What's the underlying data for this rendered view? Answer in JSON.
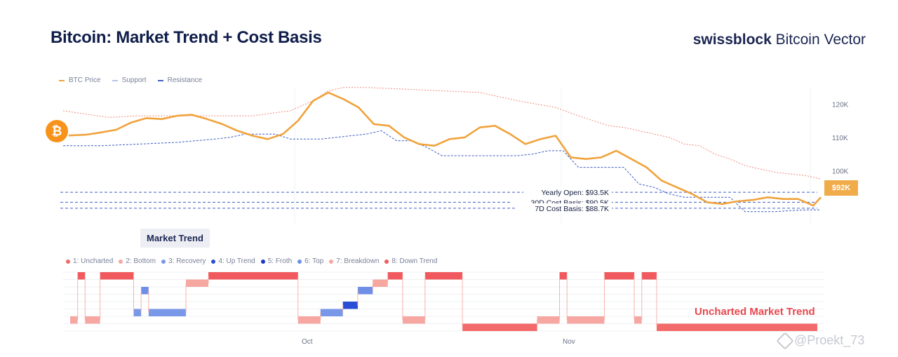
{
  "header": {
    "title": "Bitcoin: Market Trend + Cost Basis",
    "brand_bold": "swissblock",
    "brand_rest": " Bitcoin Vector"
  },
  "legend": {
    "btc_price": "BTC Price",
    "support": "Support",
    "resistance": "Resistance"
  },
  "colors": {
    "price": "#f0a33c",
    "support": "#3f5dc2",
    "resistance": "#f08a7c",
    "uncharted": "#f46a6a",
    "bottom": "#f7a7a2",
    "recovery": "#7a98e8",
    "up_trend": "#2a4fd6",
    "froth": "#1838c8",
    "top": "#6f8fe6",
    "breakdown": "#f6a8a0",
    "down_trend": "#f05a5e"
  },
  "price_badge": "$92K",
  "market_trend_tab": "Market Trend",
  "trend_legend": [
    {
      "label": "1: Uncharted",
      "color": "#f26a6a"
    },
    {
      "label": "2: Bottom",
      "color": "#f7a7a2"
    },
    {
      "label": "3: Recovery",
      "color": "#7a98e8"
    },
    {
      "label": "4: Up Trend",
      "color": "#2a4fd6"
    },
    {
      "label": "5: Froth",
      "color": "#1838c8"
    },
    {
      "label": "6: Top",
      "color": "#6f8fe6"
    },
    {
      "label": "7: Breakdown",
      "color": "#f6a8a0"
    },
    {
      "label": "8: Down Trend",
      "color": "#f05a5e"
    }
  ],
  "annotation": "Uncharted Market Trend",
  "month_labels": {
    "oct": "Oct",
    "nov": "Nov"
  },
  "watermark": "@Proekt_73",
  "btc_icon": "₿",
  "chart_data": [
    {
      "type": "line",
      "title": "Bitcoin: Market Trend + Cost Basis",
      "x_range": [
        0,
        100
      ],
      "ylim": [
        87,
        126
      ],
      "y_ticks": [
        "100K",
        "110K",
        "120K"
      ],
      "y_tick_values": [
        100,
        110,
        120
      ],
      "series": [
        {
          "name": "BTC Price",
          "x": [
            0,
            3,
            5,
            7,
            9,
            11,
            13,
            15,
            17,
            19,
            21,
            23,
            25,
            27,
            29,
            31,
            33,
            35,
            37,
            39,
            41,
            43,
            45,
            47,
            49,
            51,
            53,
            55,
            57,
            59,
            61,
            63,
            65,
            67,
            69,
            71,
            73,
            75,
            77,
            79,
            81,
            83,
            85,
            87,
            89,
            91,
            93,
            95,
            97,
            99,
            100
          ],
          "values": [
            110.5,
            110.8,
            111.5,
            112.3,
            114.5,
            115.8,
            115.5,
            116.5,
            116.8,
            115.5,
            114,
            112,
            110.5,
            109.5,
            111,
            115,
            121,
            123.5,
            121.5,
            119,
            114,
            113.5,
            110,
            108,
            107.5,
            109.5,
            110,
            113,
            113.5,
            111,
            108,
            109.5,
            110.5,
            104,
            103.5,
            104,
            106,
            103.5,
            101,
            97,
            95,
            93,
            90.5,
            90,
            90.8,
            91.2,
            92,
            91.5,
            91.5,
            89.5,
            92
          ]
        },
        {
          "name": "Support",
          "x": [
            0,
            5,
            10,
            15,
            20,
            22,
            24,
            26,
            28,
            30,
            34,
            36,
            38,
            40,
            42,
            44,
            46,
            48,
            50,
            52,
            54,
            56,
            58,
            60,
            62,
            64,
            66,
            68,
            70,
            72,
            74,
            76,
            78,
            80,
            82,
            84,
            86,
            88,
            90,
            92,
            94,
            96,
            98,
            100
          ],
          "values": [
            107.5,
            107.5,
            108,
            108.5,
            109.5,
            110,
            111,
            111,
            111,
            109.5,
            109.5,
            110,
            110.5,
            111,
            112,
            109,
            109,
            107,
            104.5,
            104.5,
            104.5,
            104.5,
            104.5,
            104.5,
            105,
            106,
            106,
            101,
            101,
            101,
            101,
            96,
            95,
            93,
            92,
            92,
            92,
            92,
            87.7,
            87.7,
            87.7,
            88,
            88.2,
            88.2
          ]
        },
        {
          "name": "Resistance",
          "x": [
            0,
            3,
            6,
            10,
            15,
            20,
            25,
            30,
            33,
            35,
            37,
            40,
            45,
            50,
            55,
            60,
            65,
            68,
            70,
            72,
            74,
            76,
            78,
            80,
            82,
            84,
            86,
            88,
            90,
            92,
            94,
            96,
            98,
            100
          ],
          "values": [
            118,
            117,
            116,
            116.5,
            116.5,
            116.5,
            116.5,
            118,
            121,
            124,
            125,
            125,
            124.5,
            124,
            123.5,
            121,
            119,
            116.5,
            115,
            113.5,
            113,
            112,
            111,
            110,
            108,
            107.5,
            105,
            103.5,
            101.5,
            100.5,
            99.5,
            99,
            98.5,
            97.5
          ]
        }
      ],
      "levels": [
        {
          "label": "Yearly Open: $93.5K",
          "value": 93.5
        },
        {
          "label": "30D Cost Basis: $90.5K",
          "value": 90.5
        },
        {
          "label": "7D Cost Basis: $88.7K",
          "value": 88.7
        }
      ],
      "current_price": "$92K"
    },
    {
      "type": "step",
      "title": "Market Trend",
      "x_labels": [
        "Oct",
        "Nov"
      ],
      "levels": 8,
      "segments": [
        {
          "from": 0.0,
          "to": 1.0,
          "level": 2
        },
        {
          "from": 1.0,
          "to": 2.0,
          "level": 8
        },
        {
          "from": 2.0,
          "to": 4.0,
          "level": 2
        },
        {
          "from": 4.0,
          "to": 8.5,
          "level": 8
        },
        {
          "from": 8.5,
          "to": 9.5,
          "level": 3
        },
        {
          "from": 9.5,
          "to": 10.5,
          "level": 6
        },
        {
          "from": 10.5,
          "to": 15.5,
          "level": 3
        },
        {
          "from": 15.5,
          "to": 18.5,
          "level": 7
        },
        {
          "from": 18.5,
          "to": 30.5,
          "level": 8
        },
        {
          "from": 30.5,
          "to": 33.5,
          "level": 2
        },
        {
          "from": 33.5,
          "to": 36.5,
          "level": 3
        },
        {
          "from": 36.5,
          "to": 38.5,
          "level": 4
        },
        {
          "from": 38.5,
          "to": 40.5,
          "level": 6
        },
        {
          "from": 40.5,
          "to": 42.5,
          "level": 7
        },
        {
          "from": 42.5,
          "to": 44.5,
          "level": 8
        },
        {
          "from": 44.5,
          "to": 47.5,
          "level": 2
        },
        {
          "from": 47.5,
          "to": 52.5,
          "level": 8
        },
        {
          "from": 52.5,
          "to": 62.5,
          "level": 1
        },
        {
          "from": 62.5,
          "to": 65.5,
          "level": 2
        },
        {
          "from": 65.5,
          "to": 66.5,
          "level": 8
        },
        {
          "from": 66.5,
          "to": 67.5,
          "level": 2
        },
        {
          "from": 67.5,
          "to": 71.5,
          "level": 2
        },
        {
          "from": 71.5,
          "to": 75.5,
          "level": 8
        },
        {
          "from": 75.5,
          "to": 76.5,
          "level": 2
        },
        {
          "from": 76.5,
          "to": 78.5,
          "level": 8
        },
        {
          "from": 78.5,
          "to": 100,
          "level": 1
        }
      ]
    }
  ]
}
